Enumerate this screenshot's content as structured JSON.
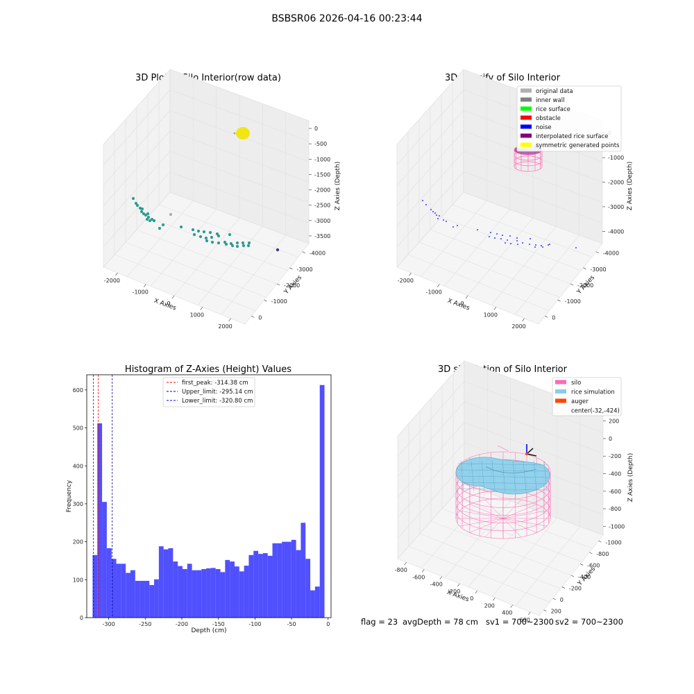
{
  "figure": {
    "suptitle": "BSBSR06 2026-04-16 00:23:44",
    "footer": {
      "flag": "flag = 23",
      "avg_depth": "avgDepth = 78 cm",
      "sv1": "sv1 = 700~2300",
      "sv2": "sv2 = 700~2300"
    }
  },
  "chart_data": [
    {
      "id": "raw",
      "type": "scatter3d",
      "title": "3D Plot of Silo Interior(row data)",
      "xlabel": "X Axies",
      "ylabel": "Y Axies",
      "zlabel": "Z Axies (Depth)",
      "x_ticks": [
        "-2000",
        "-1000",
        "0",
        "1000",
        "2000"
      ],
      "y_ticks": [
        "0",
        "-1000",
        "-2000",
        "-3000",
        "-4000"
      ],
      "z_ticks": [
        "0",
        "-500",
        "-1000",
        "-1500",
        "-2000",
        "-2500",
        "-3000",
        "-3500"
      ],
      "colors": {
        "points": "#2a9d8f",
        "cluster": "#f0e614",
        "gray": "#aaaaaa",
        "navy": "#3b3b8f"
      }
    },
    {
      "id": "classify",
      "type": "scatter3d",
      "title": "3D classify of Silo Interior",
      "xlabel": "X Axies",
      "ylabel": "Y Axies",
      "zlabel": "Z Axies (Depth)",
      "x_ticks": [
        "-2000",
        "-1000",
        "0",
        "1000",
        "2000"
      ],
      "y_ticks": [
        "0",
        "-1000",
        "-2000",
        "-3000",
        "-4000"
      ],
      "z_ticks": [
        "0",
        "-1000",
        "-2000",
        "-3000",
        "-4000"
      ],
      "legend": [
        {
          "label": "original data",
          "color": "#b0b0b0"
        },
        {
          "label": "inner wall",
          "color": "#808080"
        },
        {
          "label": "rice surface",
          "color": "#00ff00"
        },
        {
          "label": "obstacle",
          "color": "#ff0000"
        },
        {
          "label": "noise",
          "color": "#0000ff"
        },
        {
          "label": "interpolated rice surface",
          "color": "#800080"
        },
        {
          "label": "symmetric generated points",
          "color": "#ffff00"
        }
      ]
    },
    {
      "id": "histogram",
      "type": "bar",
      "title": "Histogram of Z-Axies (Height) Values",
      "xlabel": "Depth (cm)",
      "ylabel": "Frequency",
      "xlim": [
        -330,
        4
      ],
      "ylim": [
        0,
        640
      ],
      "x_ticks": [
        -300,
        -250,
        -200,
        -150,
        -100,
        -50,
        0
      ],
      "y_ticks": [
        0,
        100,
        200,
        300,
        400,
        500,
        600
      ],
      "bar_color": "#4a4aff",
      "bin_start": -322,
      "bin_width": 6.47,
      "values": [
        165,
        512,
        305,
        183,
        155,
        142,
        142,
        118,
        125,
        97,
        97,
        97,
        86,
        101,
        188,
        180,
        183,
        148,
        136,
        128,
        142,
        125,
        125,
        128,
        130,
        131,
        128,
        120,
        152,
        148,
        135,
        122,
        137,
        165,
        176,
        168,
        170,
        163,
        196,
        196,
        200,
        200,
        205,
        178,
        250,
        155,
        72,
        82,
        613
      ],
      "vlines": [
        {
          "label": "first_peak: -314.38 cm",
          "x": -314.38,
          "color": "#ff0000"
        },
        {
          "label": "Upper_limit: -295.14 cm",
          "x": -295.14,
          "color": "#00008b"
        },
        {
          "label": "Lower_limit: -320.80 cm",
          "x": -320.8,
          "color": "#0000ff"
        }
      ]
    },
    {
      "id": "simulation",
      "type": "surface3d",
      "title": "3D simulation of Silo Interior",
      "xlabel": "X Axies",
      "ylabel": "Y Axies",
      "zlabel": "Z Axies (Depth)",
      "x_ticks": [
        "-800",
        "-600",
        "-400",
        "-200",
        "0",
        "200",
        "400",
        "600"
      ],
      "y_ticks": [
        "200",
        "0",
        "-200",
        "-400",
        "-600",
        "-800",
        "-1000"
      ],
      "z_ticks": [
        "200",
        "0",
        "-200",
        "-400",
        "-600",
        "-800",
        "-1000"
      ],
      "legend": [
        {
          "label": "silo",
          "color": "#ff69b4"
        },
        {
          "label": "rice simulation",
          "color": "#87ceeb"
        },
        {
          "label": "auger",
          "color": "#ff4500"
        },
        {
          "label": "center(-32,-424)",
          "color": ""
        }
      ]
    }
  ]
}
